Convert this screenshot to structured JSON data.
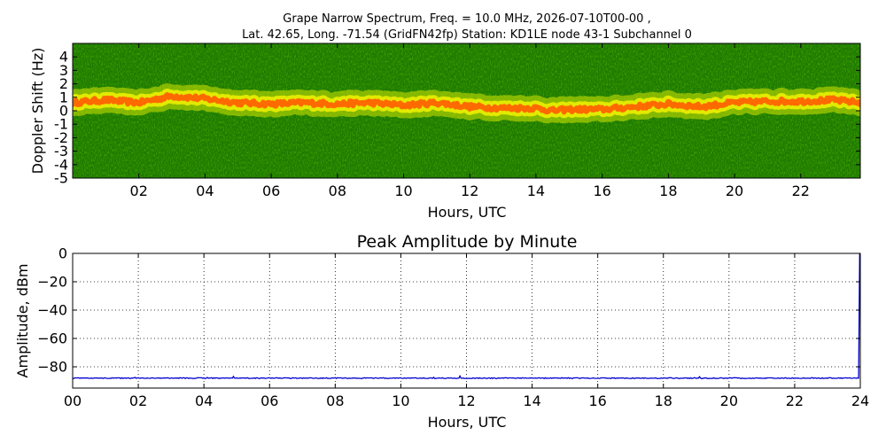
{
  "figure": {
    "title_line1": "Grape Narrow Spectrum, Freq. = 10.0 MHz, 2026-07-10T00-00 ,",
    "title_line2": "Lat.  42.65, Long. -71.54 (GridFN42fp) Station: KD1LE node 43-1 Subchannel 0"
  },
  "chart_data": [
    {
      "type": "heatmap",
      "title": "",
      "xlabel": "Hours, UTC",
      "ylabel": "Doppler Shift (Hz)",
      "xlim": [
        0,
        23.8
      ],
      "ylim": [
        -5,
        5
      ],
      "xticks": [
        2,
        4,
        6,
        8,
        10,
        12,
        14,
        16,
        18,
        20,
        22
      ],
      "xticklabels": [
        "02",
        "04",
        "06",
        "08",
        "10",
        "12",
        "14",
        "16",
        "18",
        "20",
        "22"
      ],
      "yticks": [
        4,
        3,
        2,
        1,
        0,
        -1,
        -2,
        -3,
        -4,
        -5
      ],
      "yticklabels": [
        "4",
        "3",
        "2",
        "1",
        "0",
        "-1",
        "-2",
        "-3",
        "-4",
        "-5"
      ],
      "background_color": "#1f7a00",
      "peak_color": "#ff6a00",
      "halo_color": "#e8e800",
      "peak_track": {
        "hours": [
          0,
          1,
          2,
          3,
          4,
          5,
          6,
          7,
          8,
          9,
          10,
          11,
          12,
          13,
          14,
          14.5,
          15,
          16,
          17,
          18,
          19,
          20,
          21,
          22,
          23,
          23.8
        ],
        "doppler_hz": [
          0.6,
          0.8,
          0.6,
          1.1,
          0.9,
          0.6,
          0.5,
          0.6,
          0.5,
          0.6,
          0.4,
          0.6,
          0.3,
          0.2,
          0.2,
          0.0,
          0.1,
          0.1,
          0.3,
          0.5,
          0.3,
          0.6,
          0.7,
          0.7,
          0.8,
          0.6
        ]
      }
    },
    {
      "type": "line",
      "title": "Peak Amplitude by Minute",
      "xlabel": "Hours, UTC",
      "ylabel": "Amplitude, dBm",
      "xlim": [
        0,
        24
      ],
      "ylim": [
        -95,
        0
      ],
      "grid": true,
      "xticks": [
        0,
        2,
        4,
        6,
        8,
        10,
        12,
        14,
        16,
        18,
        20,
        22,
        24
      ],
      "xticklabels": [
        "00",
        "02",
        "04",
        "06",
        "08",
        "10",
        "12",
        "14",
        "16",
        "18",
        "20",
        "22",
        "24"
      ],
      "yticks": [
        0,
        -20,
        -40,
        -60,
        -80
      ],
      "yticklabels": [
        "0",
        "−20",
        "−40",
        "−60",
        "−80"
      ],
      "line_color": "#0000cc",
      "baseline_dbm": -88,
      "x": [
        0,
        1.9,
        4.1,
        4.9,
        6.0,
        8.0,
        10.0,
        11.0,
        11.8,
        14.0,
        16.0,
        18.0,
        19.1,
        20.0,
        22.0,
        23.95,
        23.98
      ],
      "y": [
        -88,
        -87.5,
        -87.5,
        -86.8,
        -87.8,
        -87.6,
        -87.9,
        -87.4,
        -86.5,
        -87.8,
        -88,
        -87.8,
        -87.0,
        -87.8,
        -88,
        -88,
        0
      ]
    }
  ]
}
